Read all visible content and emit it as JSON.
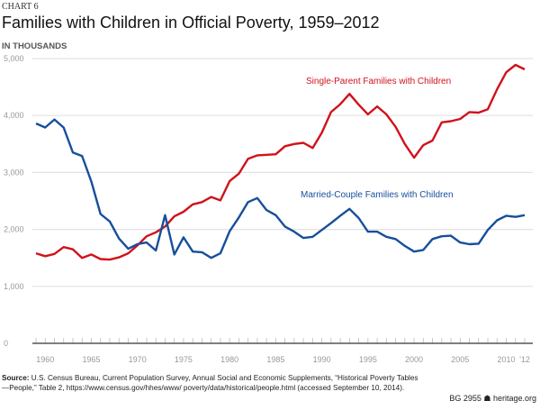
{
  "kicker": "CHART 6",
  "source_label": "Source:",
  "source_text": "U.S. Census Bureau, Current Population Survey, Annual Social and Economic Supplements, “Historical Poverty Tables—People,” Table 2, https://www.census.gov/hhes/www/ poverty/data/historical/people.html (accessed September 10, 2014).",
  "brand": "BG 2955 ☗ heritage.org",
  "chart_data": {
    "type": "line",
    "title": "Families with Children in Official Poverty, 1959–2012",
    "ylabel": "IN THOUSANDS",
    "xlabel": "",
    "xlim": [
      1959,
      2012
    ],
    "ylim": [
      0,
      5000
    ],
    "grid": true,
    "y_ticks": [
      "0",
      "1,000",
      "2,000",
      "3,000",
      "4,000",
      "5,000"
    ],
    "y_tick_values": [
      0,
      1000,
      2000,
      3000,
      4000,
      5000
    ],
    "x_ticks": [
      "1960",
      "1965",
      "1970",
      "1975",
      "1980",
      "1985",
      "1990",
      "1995",
      "2000",
      "2005",
      "2010",
      "'12"
    ],
    "x_tick_values": [
      1960,
      1965,
      1970,
      1975,
      1980,
      1985,
      1990,
      1995,
      2000,
      2005,
      2010,
      2012
    ],
    "x": [
      1959,
      1960,
      1961,
      1962,
      1963,
      1964,
      1965,
      1966,
      1967,
      1968,
      1969,
      1970,
      1971,
      1972,
      1973,
      1974,
      1975,
      1976,
      1977,
      1978,
      1979,
      1980,
      1981,
      1982,
      1983,
      1984,
      1985,
      1986,
      1987,
      1988,
      1989,
      1990,
      1991,
      1992,
      1993,
      1994,
      1995,
      1996,
      1997,
      1998,
      1999,
      2000,
      2001,
      2002,
      2003,
      2004,
      2005,
      2006,
      2007,
      2008,
      2009,
      2010,
      2011,
      2012
    ],
    "series": [
      {
        "name": "Single-Parent Families with Children",
        "color": "#d0121b",
        "values": [
          1580,
          1530,
          1570,
          1690,
          1650,
          1500,
          1560,
          1480,
          1470,
          1510,
          1580,
          1720,
          1880,
          1950,
          2050,
          2230,
          2310,
          2440,
          2480,
          2570,
          2510,
          2850,
          2980,
          3240,
          3300,
          3310,
          3320,
          3460,
          3500,
          3520,
          3430,
          3700,
          4060,
          4200,
          4380,
          4190,
          4020,
          4160,
          4020,
          3800,
          3500,
          3260,
          3480,
          3560,
          3880,
          3900,
          3940,
          4060,
          4050,
          4110,
          4460,
          4760,
          4890,
          4810
        ]
      },
      {
        "name": "Married-Couple Families with Children",
        "color": "#164f9c",
        "values": [
          3860,
          3790,
          3930,
          3790,
          3350,
          3290,
          2840,
          2270,
          2140,
          1840,
          1660,
          1740,
          1770,
          1630,
          2250,
          1560,
          1860,
          1610,
          1600,
          1500,
          1580,
          1970,
          2210,
          2480,
          2550,
          2340,
          2250,
          2050,
          1960,
          1850,
          1870,
          1990,
          2110,
          2240,
          2360,
          2200,
          1960,
          1960,
          1870,
          1830,
          1710,
          1610,
          1640,
          1830,
          1880,
          1890,
          1770,
          1740,
          1750,
          1990,
          2160,
          2240,
          2220,
          2250
        ]
      }
    ]
  }
}
